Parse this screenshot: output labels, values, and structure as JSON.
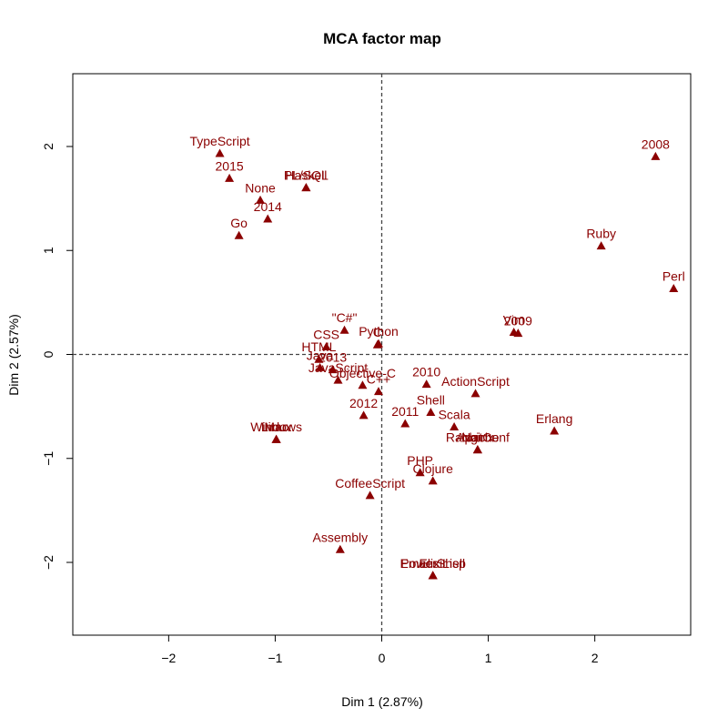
{
  "chart_data": {
    "type": "scatter",
    "title": "MCA factor map",
    "xlabel": "Dim 1 (2.87%)",
    "ylabel": "Dim 2 (2.57%)",
    "xlim": [
      -2.9,
      2.9
    ],
    "ylim": [
      -2.7,
      2.7
    ],
    "xticks": [
      -2,
      -1,
      0,
      1,
      2
    ],
    "yticks": [
      -2,
      -1,
      0,
      1,
      2
    ],
    "reference_lines": {
      "x": 0,
      "y": 0,
      "style": "dashed"
    },
    "marker": "triangle",
    "color": "#8B0000",
    "points": [
      {
        "label": "TypeScript",
        "x": -1.52,
        "y": 1.93
      },
      {
        "label": "2015",
        "x": -1.43,
        "y": 1.69
      },
      {
        "label": "Haskell",
        "x": -0.71,
        "y": 1.6
      },
      {
        "label": "PL/SQL",
        "x": -0.71,
        "y": 1.6
      },
      {
        "label": "None",
        "x": -1.14,
        "y": 1.48
      },
      {
        "label": "2014",
        "x": -1.07,
        "y": 1.3
      },
      {
        "label": "Go",
        "x": -1.34,
        "y": 1.14
      },
      {
        "label": "2008",
        "x": 2.57,
        "y": 1.9
      },
      {
        "label": "Ruby",
        "x": 2.06,
        "y": 1.04
      },
      {
        "label": "Perl",
        "x": 2.74,
        "y": 0.63
      },
      {
        "label": "Vim",
        "x": 1.24,
        "y": 0.21
      },
      {
        "label": "2009",
        "x": 1.28,
        "y": 0.2
      },
      {
        "label": "\"C#\"",
        "x": -0.35,
        "y": 0.23
      },
      {
        "label": "Python",
        "x": -0.03,
        "y": 0.1
      },
      {
        "label": "C",
        "x": -0.04,
        "y": 0.09
      },
      {
        "label": "CSS",
        "x": -0.52,
        "y": 0.07
      },
      {
        "label": "HTML",
        "x": -0.59,
        "y": -0.05
      },
      {
        "label": "Java",
        "x": -0.58,
        "y": -0.13
      },
      {
        "label": "2013",
        "x": -0.46,
        "y": -0.15
      },
      {
        "label": "Objective-C",
        "x": -0.18,
        "y": -0.3
      },
      {
        "label": "JavaScript",
        "x": -0.41,
        "y": -0.25
      },
      {
        "label": "C++",
        "x": -0.03,
        "y": -0.36
      },
      {
        "label": "2010",
        "x": 0.42,
        "y": -0.29
      },
      {
        "label": "ActionScript",
        "x": 0.88,
        "y": -0.38
      },
      {
        "label": "2012",
        "x": -0.17,
        "y": -0.59
      },
      {
        "label": "Shell",
        "x": 0.46,
        "y": -0.56
      },
      {
        "label": "2011",
        "x": 0.22,
        "y": -0.67
      },
      {
        "label": "Scala",
        "x": 0.68,
        "y": -0.7
      },
      {
        "label": "Erlang",
        "x": 1.62,
        "y": -0.74
      },
      {
        "label": "Apache",
        "x": 0.9,
        "y": -0.92
      },
      {
        "label": "Nginx",
        "x": 0.9,
        "y": -0.92
      },
      {
        "label": "RabbitConf",
        "x": 0.9,
        "y": -0.92
      },
      {
        "label": "Mac",
        "x": -0.99,
        "y": -0.82
      },
      {
        "label": "Windows",
        "x": -0.99,
        "y": -0.82
      },
      {
        "label": "Linux",
        "x": -0.99,
        "y": -0.82
      },
      {
        "label": "PHP",
        "x": 0.36,
        "y": -1.14
      },
      {
        "label": "Clojure",
        "x": 0.48,
        "y": -1.22
      },
      {
        "label": "CoffeeScript",
        "x": -0.11,
        "y": -1.36
      },
      {
        "label": "Assembly",
        "x": -0.39,
        "y": -1.88
      },
      {
        "label": "PowerShell",
        "x": 0.48,
        "y": -2.13
      },
      {
        "label": "Emacs Lisp",
        "x": 0.48,
        "y": -2.13
      },
      {
        "label": "Elixir",
        "x": 0.48,
        "y": -2.13
      }
    ]
  }
}
